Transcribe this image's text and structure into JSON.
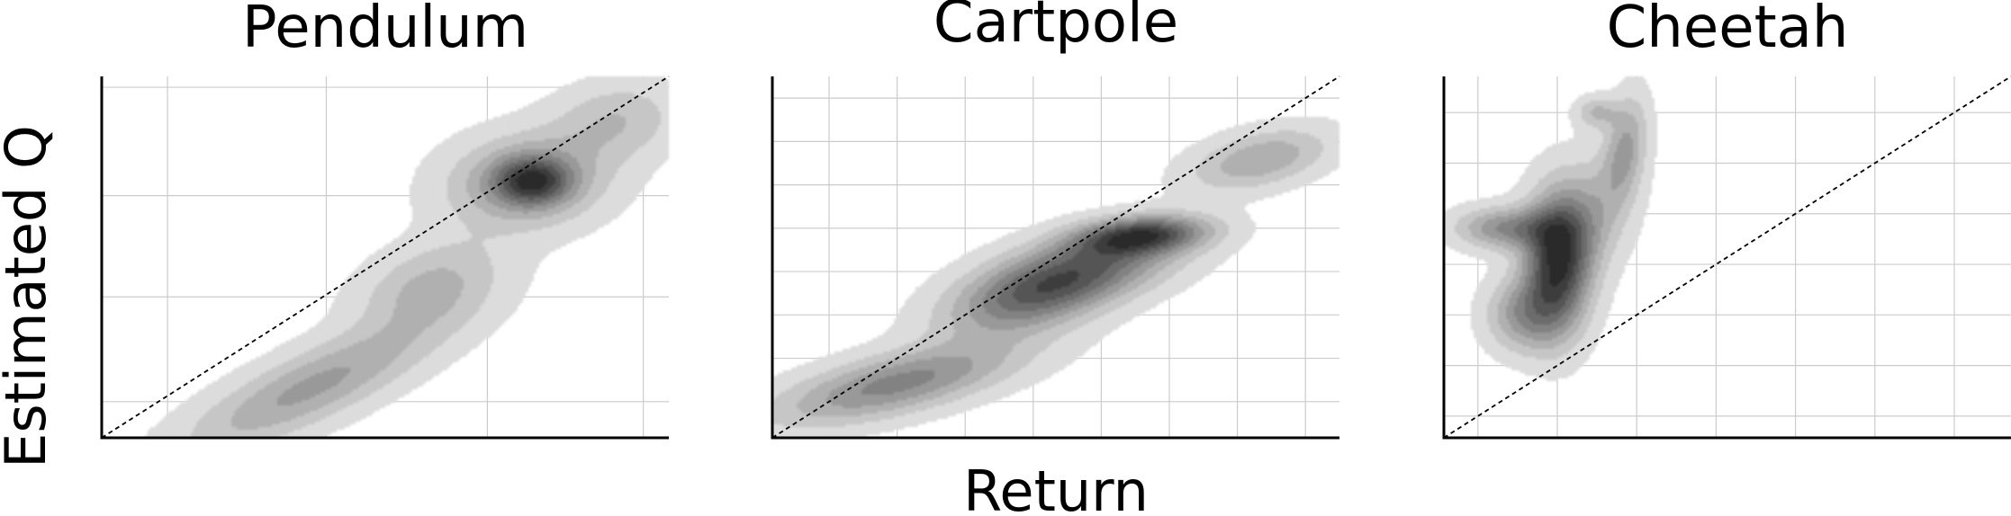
{
  "figure": {
    "xlabel": "Return",
    "ylabel": "Estimated Q"
  },
  "chart_data": [
    {
      "type": "heatmap",
      "title": "Pendulum",
      "xlabel": "Return",
      "ylabel": "Estimated Q",
      "grid": true,
      "x_gridlines": [
        0.116,
        0.396,
        0.68,
        0.955
      ],
      "y_gridlines": [
        0.1,
        0.39,
        0.67,
        0.97
      ],
      "diagonal": [
        [
          0,
          0
        ],
        [
          1,
          1
        ]
      ],
      "density_blobs": [
        {
          "x": 0.37,
          "y": 0.14,
          "sx": 0.19,
          "sy": 0.06,
          "angle": 38,
          "w": 0.9
        },
        {
          "x": 0.58,
          "y": 0.42,
          "sx": 0.1,
          "sy": 0.07,
          "angle": 45,
          "w": 0.65
        },
        {
          "x": 0.75,
          "y": 0.71,
          "sx": 0.1,
          "sy": 0.085,
          "angle": 30,
          "w": 1.0
        },
        {
          "x": 0.76,
          "y": 0.71,
          "sx": 0.045,
          "sy": 0.045,
          "angle": 0,
          "w": 1.3
        },
        {
          "x": 0.91,
          "y": 0.88,
          "sx": 0.08,
          "sy": 0.07,
          "angle": 40,
          "w": 0.55
        }
      ]
    },
    {
      "type": "heatmap",
      "title": "Cartpole",
      "xlabel": "Return",
      "ylabel": "Estimated Q",
      "grid": true,
      "x_gridlines": [
        0.1,
        0.22,
        0.34,
        0.46,
        0.58,
        0.7,
        0.82,
        0.94
      ],
      "y_gridlines": [
        0.1,
        0.22,
        0.34,
        0.46,
        0.58,
        0.7,
        0.82,
        0.94
      ],
      "diagonal": [
        [
          0,
          0
        ],
        [
          1,
          1
        ]
      ],
      "density_blobs": [
        {
          "x": 0.22,
          "y": 0.15,
          "sx": 0.16,
          "sy": 0.055,
          "angle": 22,
          "w": 0.85
        },
        {
          "x": 0.45,
          "y": 0.38,
          "sx": 0.11,
          "sy": 0.06,
          "angle": 25,
          "w": 0.8
        },
        {
          "x": 0.55,
          "y": 0.47,
          "sx": 0.12,
          "sy": 0.06,
          "angle": 20,
          "w": 0.9
        },
        {
          "x": 0.65,
          "y": 0.56,
          "sx": 0.08,
          "sy": 0.035,
          "angle": 8,
          "w": 1.25
        },
        {
          "x": 0.86,
          "y": 0.77,
          "sx": 0.09,
          "sy": 0.05,
          "angle": 25,
          "w": 0.6
        }
      ]
    },
    {
      "type": "heatmap",
      "title": "Cheetah",
      "xlabel": "Return",
      "ylabel": "Estimated Q",
      "grid": true,
      "x_gridlines": [
        0.06,
        0.2,
        0.34,
        0.48,
        0.62,
        0.76,
        0.9
      ],
      "y_gridlines": [
        0.06,
        0.2,
        0.34,
        0.48,
        0.62,
        0.76,
        0.9
      ],
      "diagonal": [
        [
          0,
          0
        ],
        [
          1,
          1
        ]
      ],
      "density_blobs": [
        {
          "x": 0.2,
          "y": 0.48,
          "sx": 0.04,
          "sy": 0.13,
          "angle": 0,
          "w": 1.2
        },
        {
          "x": 0.11,
          "y": 0.58,
          "sx": 0.06,
          "sy": 0.04,
          "angle": 0,
          "w": 0.7
        },
        {
          "x": 0.14,
          "y": 0.34,
          "sx": 0.045,
          "sy": 0.07,
          "angle": 0,
          "w": 0.6
        },
        {
          "x": 0.25,
          "y": 0.6,
          "sx": 0.05,
          "sy": 0.12,
          "angle": -10,
          "w": 0.45
        },
        {
          "x": 0.32,
          "y": 0.8,
          "sx": 0.025,
          "sy": 0.1,
          "angle": -5,
          "w": 0.55
        },
        {
          "x": 0.27,
          "y": 0.9,
          "sx": 0.025,
          "sy": 0.03,
          "angle": 0,
          "w": 0.4
        }
      ]
    }
  ]
}
